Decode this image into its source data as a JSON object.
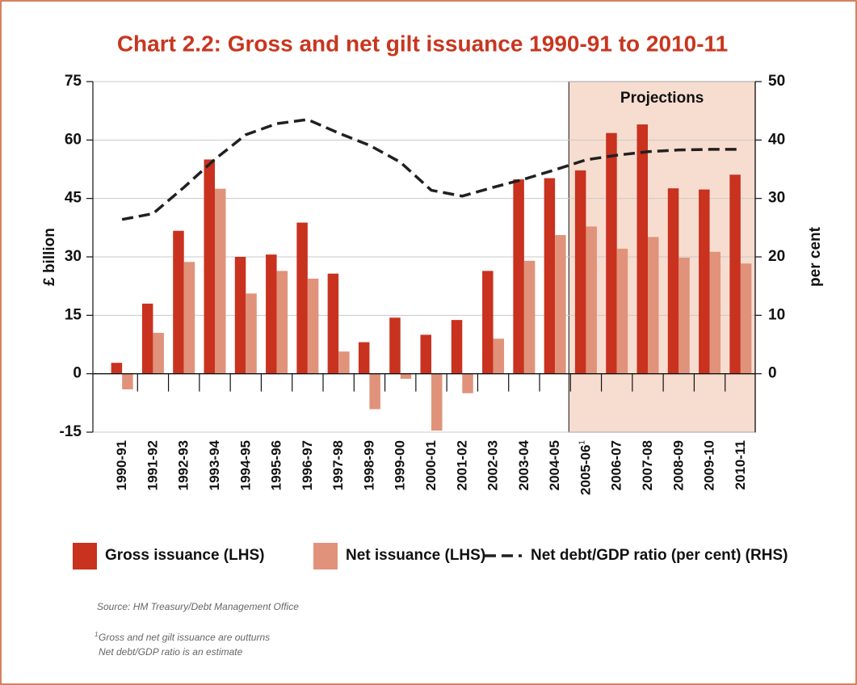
{
  "chart_data": {
    "type": "bar",
    "title": "Chart 2.2: Gross and net gilt issuance 1990-91 to 2010-11",
    "ylabel": "£ billion",
    "y2label": "per cent",
    "categories": [
      "1990-91",
      "1991-92",
      "1992-93",
      "1993-94",
      "1994-95",
      "1995-96",
      "1996-97",
      "1997-98",
      "1998-99",
      "1999-00",
      "2000-01",
      "2001-02",
      "2002-03",
      "2003-04",
      "2004-05",
      "2005-06",
      "2006-07",
      "2007-08",
      "2008-09",
      "2009-10",
      "2010-11"
    ],
    "category_footnote": {
      "category": "2005-06",
      "mark": "1"
    },
    "series": [
      {
        "name": "Gross issuance (LHS)",
        "type": "bar",
        "color": "#c8321f",
        "values": [
          2.8,
          18,
          36.7,
          55,
          30,
          30.6,
          38.8,
          25.7,
          8.1,
          14.4,
          10,
          13.8,
          26.4,
          49.9,
          50.2,
          52.2,
          61.8,
          64,
          47.6,
          47.3,
          51.1
        ]
      },
      {
        "name": "Net issuance (LHS)",
        "type": "bar",
        "color": "#e0937a",
        "values": [
          -4,
          10.5,
          28.7,
          47.5,
          20.6,
          26.4,
          24.4,
          5.7,
          -9.1,
          -1.3,
          -14.6,
          -5,
          9,
          29,
          35.6,
          37.8,
          32.1,
          35.1,
          29.8,
          31.3,
          28.3
        ]
      },
      {
        "name": "Net debt/GDP ratio (per cent) (RHS)",
        "type": "line",
        "axis": "y2",
        "color": "#231f20",
        "dashed": true,
        "values": [
          26.4,
          27.4,
          31.9,
          36.7,
          40.9,
          42.8,
          43.5,
          41.2,
          39.1,
          36.2,
          31.4,
          30.4,
          31.9,
          33.3,
          34.9,
          36.6,
          37.4,
          38.0,
          38.3,
          38.4,
          38.4
        ]
      }
    ],
    "ylim": [
      -15,
      75
    ],
    "yticks": [
      -15,
      0,
      15,
      30,
      45,
      60,
      75
    ],
    "y2lim": [
      -10,
      50
    ],
    "y2ticks": [
      0,
      10,
      20,
      30,
      40,
      50
    ],
    "grid": true,
    "shaded_region": {
      "label": "Projections",
      "from": "2005-06",
      "to": "2010-11",
      "color": "#f7ddd0"
    },
    "source": "Source: HM Treasury/Debt Management Office",
    "footnotes": [
      "Gross and net gilt issuance are outturns",
      "Net debt/GDP ratio is an estimate"
    ]
  }
}
